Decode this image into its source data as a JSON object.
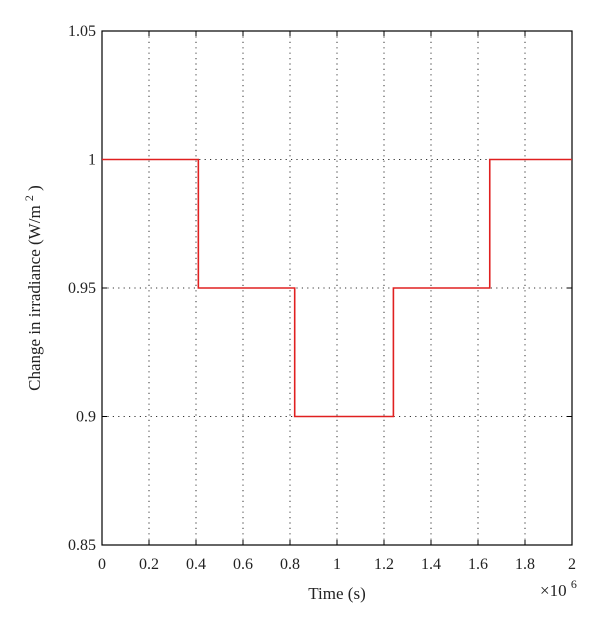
{
  "chart_data": {
    "type": "line",
    "line_style": "step",
    "xlabel": "Time (s)",
    "ylabel_main": "Change in irradiance (W/m",
    "ylabel_sup": "2",
    "ylabel_end": ")",
    "x_multiplier_base": "×10",
    "x_multiplier_exp": "6",
    "xlim": [
      0,
      2
    ],
    "ylim": [
      0.85,
      1.05
    ],
    "grid": true,
    "x_ticks": [
      0,
      0.2,
      0.4,
      0.6,
      0.8,
      1,
      1.2,
      1.4,
      1.6,
      1.8,
      2
    ],
    "x_tick_labels": [
      "0",
      "0.2",
      "0.4",
      "0.6",
      "0.8",
      "1",
      "1.2",
      "1.4",
      "1.6",
      "1.8",
      "2"
    ],
    "y_ticks": [
      0.85,
      0.9,
      0.95,
      1,
      1.05
    ],
    "y_tick_labels": [
      "0.85",
      "0.9",
      "0.95",
      "1",
      "1.05"
    ],
    "series": [
      {
        "color": "#e02020",
        "x": [
          0,
          0.41,
          0.41,
          0.82,
          0.82,
          1.24,
          1.24,
          1.65,
          1.65,
          2
        ],
        "y": [
          1,
          1,
          0.95,
          0.95,
          0.9,
          0.9,
          0.95,
          0.95,
          1,
          1
        ]
      }
    ]
  }
}
